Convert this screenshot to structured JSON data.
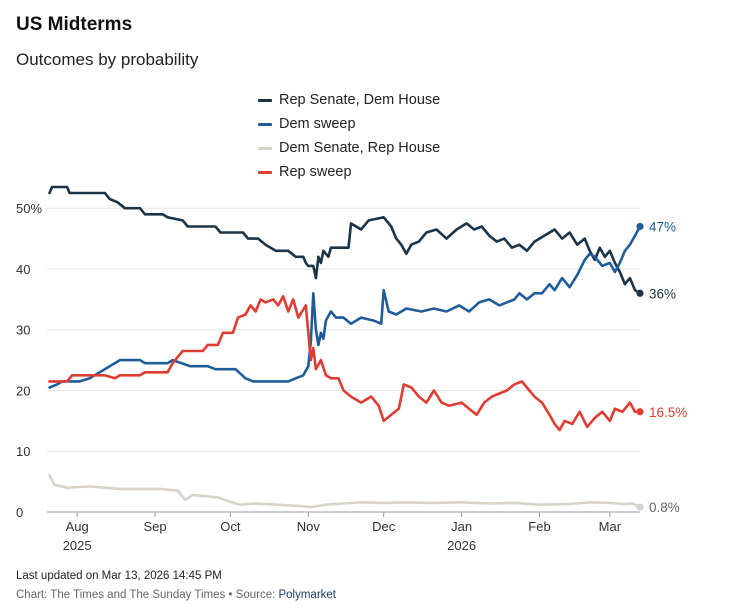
{
  "header": {
    "title": "US Midterms",
    "subtitle": "Outcomes by probability"
  },
  "legend": [
    {
      "label": "Rep Senate, Dem House",
      "color": "#1b3447"
    },
    {
      "label": "Dem sweep",
      "color": "#1f5c99"
    },
    {
      "label": "Dem Senate, Rep House",
      "color": "#d8d3c8"
    },
    {
      "label": "Rep sweep",
      "color": "#e03c31"
    }
  ],
  "chart_data": {
    "type": "line",
    "title": "US Midterms",
    "subtitle": "Outcomes by probability",
    "xlabel": "",
    "ylabel": "",
    "y_unit": "%",
    "ylim": [
      0,
      53
    ],
    "y_ticks": [
      0,
      10,
      20,
      30,
      40,
      50
    ],
    "y_tick_labels": [
      "0",
      "10",
      "20",
      "30",
      "40",
      "50%"
    ],
    "x_range": [
      "2025-07-20",
      "2026-03-13"
    ],
    "x_ticks": [
      {
        "date": "2025-08-01",
        "label": "Aug",
        "year": "2025"
      },
      {
        "date": "2025-09-01",
        "label": "Sep",
        "year": ""
      },
      {
        "date": "2025-10-01",
        "label": "Oct",
        "year": ""
      },
      {
        "date": "2025-11-01",
        "label": "Nov",
        "year": ""
      },
      {
        "date": "2025-12-01",
        "label": "Dec",
        "year": ""
      },
      {
        "date": "2026-01-01",
        "label": "Jan",
        "year": "2026"
      },
      {
        "date": "2026-02-01",
        "label": "Feb",
        "year": ""
      },
      {
        "date": "2026-03-01",
        "label": "Mar",
        "year": ""
      }
    ],
    "grid": true,
    "series": [
      {
        "name": "Rep Senate, Dem House",
        "color": "#1b3447",
        "end_label": "36%",
        "points": [
          [
            "2025-07-21",
            52.5
          ],
          [
            "2025-07-22",
            53.5
          ],
          [
            "2025-07-28",
            53.5
          ],
          [
            "2025-07-29",
            52.5
          ],
          [
            "2025-08-12",
            52.5
          ],
          [
            "2025-08-14",
            51.5
          ],
          [
            "2025-08-17",
            51
          ],
          [
            "2025-08-20",
            50
          ],
          [
            "2025-08-26",
            50
          ],
          [
            "2025-08-28",
            49
          ],
          [
            "2025-09-04",
            49
          ],
          [
            "2025-09-06",
            48.5
          ],
          [
            "2025-09-12",
            48
          ],
          [
            "2025-09-14",
            47
          ],
          [
            "2025-09-25",
            47
          ],
          [
            "2025-09-27",
            46
          ],
          [
            "2025-10-06",
            46
          ],
          [
            "2025-10-08",
            45
          ],
          [
            "2025-10-12",
            45
          ],
          [
            "2025-10-15",
            44
          ],
          [
            "2025-10-19",
            43
          ],
          [
            "2025-10-24",
            43
          ],
          [
            "2025-10-27",
            42
          ],
          [
            "2025-10-30",
            42
          ],
          [
            "2025-10-31",
            41
          ],
          [
            "2025-11-01",
            40.5
          ],
          [
            "2025-11-03",
            40.5
          ],
          [
            "2025-11-04",
            38.5
          ],
          [
            "2025-11-05",
            42
          ],
          [
            "2025-11-06",
            41
          ],
          [
            "2025-11-07",
            43
          ],
          [
            "2025-11-09",
            42
          ],
          [
            "2025-11-10",
            43.5
          ],
          [
            "2025-11-17",
            43.5
          ],
          [
            "2025-11-18",
            47.5
          ],
          [
            "2025-11-22",
            46.5
          ],
          [
            "2025-11-25",
            48
          ],
          [
            "2025-12-01",
            48.5
          ],
          [
            "2025-12-04",
            47
          ],
          [
            "2025-12-06",
            45
          ],
          [
            "2025-12-08",
            44
          ],
          [
            "2025-12-10",
            42.5
          ],
          [
            "2025-12-12",
            44
          ],
          [
            "2025-12-15",
            44.5
          ],
          [
            "2025-12-18",
            46
          ],
          [
            "2025-12-22",
            46.5
          ],
          [
            "2025-12-26",
            45
          ],
          [
            "2025-12-30",
            46.5
          ],
          [
            "2026-01-03",
            47.5
          ],
          [
            "2026-01-06",
            46.5
          ],
          [
            "2026-01-09",
            47
          ],
          [
            "2026-01-12",
            45.5
          ],
          [
            "2026-01-15",
            44.5
          ],
          [
            "2026-01-18",
            45
          ],
          [
            "2026-01-21",
            43.5
          ],
          [
            "2026-01-24",
            44
          ],
          [
            "2026-01-27",
            43
          ],
          [
            "2026-01-30",
            44.5
          ],
          [
            "2026-02-03",
            45.5
          ],
          [
            "2026-02-07",
            46.5
          ],
          [
            "2026-02-10",
            45
          ],
          [
            "2026-02-13",
            46
          ],
          [
            "2026-02-16",
            44
          ],
          [
            "2026-02-19",
            45
          ],
          [
            "2026-02-21",
            43
          ],
          [
            "2026-02-23",
            41.5
          ],
          [
            "2026-02-25",
            43.5
          ],
          [
            "2026-02-27",
            42
          ],
          [
            "2026-03-01",
            43
          ],
          [
            "2026-03-03",
            41
          ],
          [
            "2026-03-05",
            39.5
          ],
          [
            "2026-03-07",
            37.5
          ],
          [
            "2026-03-09",
            38.5
          ],
          [
            "2026-03-11",
            36.5
          ],
          [
            "2026-03-13",
            36
          ]
        ]
      },
      {
        "name": "Dem sweep",
        "color": "#1f5c99",
        "end_label": "47%",
        "points": [
          [
            "2025-07-21",
            20.5
          ],
          [
            "2025-07-24",
            21
          ],
          [
            "2025-07-26",
            21.5
          ],
          [
            "2025-08-02",
            21.5
          ],
          [
            "2025-08-06",
            22
          ],
          [
            "2025-08-10",
            23
          ],
          [
            "2025-08-14",
            24
          ],
          [
            "2025-08-18",
            25
          ],
          [
            "2025-08-26",
            25
          ],
          [
            "2025-08-28",
            24.5
          ],
          [
            "2025-09-06",
            24.5
          ],
          [
            "2025-09-08",
            25
          ],
          [
            "2025-09-15",
            24
          ],
          [
            "2025-09-22",
            24
          ],
          [
            "2025-09-25",
            23.5
          ],
          [
            "2025-10-03",
            23.5
          ],
          [
            "2025-10-07",
            22
          ],
          [
            "2025-10-10",
            21.5
          ],
          [
            "2025-10-24",
            21.5
          ],
          [
            "2025-10-27",
            22
          ],
          [
            "2025-10-30",
            22.5
          ],
          [
            "2025-11-01",
            24
          ],
          [
            "2025-11-02",
            28
          ],
          [
            "2025-11-03",
            36
          ],
          [
            "2025-11-04",
            30
          ],
          [
            "2025-11-05",
            27.5
          ],
          [
            "2025-11-06",
            29.5
          ],
          [
            "2025-11-07",
            28.5
          ],
          [
            "2025-11-08",
            31.5
          ],
          [
            "2025-11-10",
            33
          ],
          [
            "2025-11-12",
            32
          ],
          [
            "2025-11-15",
            32
          ],
          [
            "2025-11-18",
            31
          ],
          [
            "2025-11-22",
            32
          ],
          [
            "2025-11-27",
            31.5
          ],
          [
            "2025-11-30",
            31
          ],
          [
            "2025-12-01",
            36.5
          ],
          [
            "2025-12-03",
            33
          ],
          [
            "2025-12-06",
            32.5
          ],
          [
            "2025-12-10",
            33.5
          ],
          [
            "2025-12-16",
            33
          ],
          [
            "2025-12-21",
            33.5
          ],
          [
            "2025-12-26",
            33
          ],
          [
            "2025-12-31",
            34
          ],
          [
            "2026-01-04",
            33
          ],
          [
            "2026-01-08",
            34.5
          ],
          [
            "2026-01-12",
            35
          ],
          [
            "2026-01-16",
            34
          ],
          [
            "2026-01-19",
            34.5
          ],
          [
            "2026-01-22",
            35
          ],
          [
            "2026-01-24",
            36
          ],
          [
            "2026-01-27",
            35
          ],
          [
            "2026-01-30",
            36
          ],
          [
            "2026-02-02",
            36
          ],
          [
            "2026-02-05",
            37.5
          ],
          [
            "2026-02-07",
            36.5
          ],
          [
            "2026-02-10",
            38.5
          ],
          [
            "2026-02-13",
            37
          ],
          [
            "2026-02-16",
            39
          ],
          [
            "2026-02-19",
            41.5
          ],
          [
            "2026-02-21",
            42.5
          ],
          [
            "2026-02-23",
            42
          ],
          [
            "2026-02-26",
            40.5
          ],
          [
            "2026-03-01",
            41
          ],
          [
            "2026-03-03",
            39.5
          ],
          [
            "2026-03-05",
            41
          ],
          [
            "2026-03-07",
            43
          ],
          [
            "2026-03-09",
            44
          ],
          [
            "2026-03-11",
            45.5
          ],
          [
            "2026-03-13",
            47
          ]
        ]
      },
      {
        "name": "Dem Senate, Rep House",
        "color": "#d8d3c8",
        "end_label": "0.8%",
        "points": [
          [
            "2025-07-21",
            6
          ],
          [
            "2025-07-23",
            4.5
          ],
          [
            "2025-07-28",
            4
          ],
          [
            "2025-08-06",
            4.2
          ],
          [
            "2025-08-12",
            4
          ],
          [
            "2025-08-18",
            3.8
          ],
          [
            "2025-08-28",
            3.8
          ],
          [
            "2025-09-03",
            3.8
          ],
          [
            "2025-09-10",
            3.5
          ],
          [
            "2025-09-13",
            2
          ],
          [
            "2025-09-16",
            2.8
          ],
          [
            "2025-09-21",
            2.6
          ],
          [
            "2025-09-26",
            2.4
          ],
          [
            "2025-09-30",
            1.8
          ],
          [
            "2025-10-05",
            1.2
          ],
          [
            "2025-10-10",
            1.4
          ],
          [
            "2025-10-20",
            1.2
          ],
          [
            "2025-10-28",
            1.0
          ],
          [
            "2025-11-02",
            0.8
          ],
          [
            "2025-11-08",
            1.2
          ],
          [
            "2025-11-15",
            1.4
          ],
          [
            "2025-11-22",
            1.6
          ],
          [
            "2025-12-01",
            1.5
          ],
          [
            "2025-12-10",
            1.6
          ],
          [
            "2025-12-20",
            1.5
          ],
          [
            "2026-01-01",
            1.6
          ],
          [
            "2026-01-12",
            1.4
          ],
          [
            "2026-01-22",
            1.5
          ],
          [
            "2026-02-01",
            1.2
          ],
          [
            "2026-02-12",
            1.3
          ],
          [
            "2026-02-22",
            1.6
          ],
          [
            "2026-03-01",
            1.5
          ],
          [
            "2026-03-07",
            1.3
          ],
          [
            "2026-03-10",
            1.4
          ],
          [
            "2026-03-13",
            0.8
          ]
        ]
      },
      {
        "name": "Rep sweep",
        "color": "#e03c31",
        "end_label": "16.5%",
        "points": [
          [
            "2025-07-21",
            21.5
          ],
          [
            "2025-07-28",
            21.5
          ],
          [
            "2025-07-30",
            22.5
          ],
          [
            "2025-08-12",
            22.5
          ],
          [
            "2025-08-16",
            22
          ],
          [
            "2025-08-18",
            22.5
          ],
          [
            "2025-08-26",
            22.5
          ],
          [
            "2025-08-28",
            23
          ],
          [
            "2025-09-06",
            23
          ],
          [
            "2025-09-08",
            24.5
          ],
          [
            "2025-09-12",
            26.5
          ],
          [
            "2025-09-20",
            26.5
          ],
          [
            "2025-09-22",
            27.5
          ],
          [
            "2025-09-26",
            27.5
          ],
          [
            "2025-09-28",
            29.5
          ],
          [
            "2025-10-02",
            29.5
          ],
          [
            "2025-10-04",
            32
          ],
          [
            "2025-10-07",
            32.5
          ],
          [
            "2025-10-09",
            34
          ],
          [
            "2025-10-11",
            33
          ],
          [
            "2025-10-13",
            35
          ],
          [
            "2025-10-15",
            34.5
          ],
          [
            "2025-10-18",
            35
          ],
          [
            "2025-10-20",
            34
          ],
          [
            "2025-10-22",
            35.5
          ],
          [
            "2025-10-24",
            33
          ],
          [
            "2025-10-26",
            35
          ],
          [
            "2025-10-28",
            32
          ],
          [
            "2025-10-31",
            34
          ],
          [
            "2025-11-02",
            25
          ],
          [
            "2025-11-03",
            27
          ],
          [
            "2025-11-04",
            23.5
          ],
          [
            "2025-11-06",
            25
          ],
          [
            "2025-11-08",
            22.5
          ],
          [
            "2025-11-10",
            22
          ],
          [
            "2025-11-13",
            22
          ],
          [
            "2025-11-15",
            20
          ],
          [
            "2025-11-18",
            19
          ],
          [
            "2025-11-22",
            18
          ],
          [
            "2025-11-26",
            19
          ],
          [
            "2025-11-29",
            17.5
          ],
          [
            "2025-12-01",
            15
          ],
          [
            "2025-12-04",
            16
          ],
          [
            "2025-12-07",
            17
          ],
          [
            "2025-12-09",
            21
          ],
          [
            "2025-12-12",
            20.5
          ],
          [
            "2025-12-15",
            19
          ],
          [
            "2025-12-18",
            18
          ],
          [
            "2025-12-21",
            20
          ],
          [
            "2025-12-24",
            18
          ],
          [
            "2025-12-27",
            17.5
          ],
          [
            "2026-01-01",
            18
          ],
          [
            "2026-01-04",
            17
          ],
          [
            "2026-01-07",
            16
          ],
          [
            "2026-01-10",
            18
          ],
          [
            "2026-01-13",
            19
          ],
          [
            "2026-01-16",
            19.5
          ],
          [
            "2026-01-19",
            20
          ],
          [
            "2026-01-22",
            21
          ],
          [
            "2026-01-25",
            21.5
          ],
          [
            "2026-01-27",
            20.5
          ],
          [
            "2026-01-30",
            19
          ],
          [
            "2026-02-02",
            18
          ],
          [
            "2026-02-05",
            16
          ],
          [
            "2026-02-07",
            14.5
          ],
          [
            "2026-02-09",
            13.5
          ],
          [
            "2026-02-11",
            15
          ],
          [
            "2026-02-14",
            14.5
          ],
          [
            "2026-02-17",
            16.5
          ],
          [
            "2026-02-20",
            14
          ],
          [
            "2026-02-23",
            15.5
          ],
          [
            "2026-02-26",
            16.5
          ],
          [
            "2026-03-01",
            15
          ],
          [
            "2026-03-03",
            17
          ],
          [
            "2026-03-06",
            16.5
          ],
          [
            "2026-03-09",
            18
          ],
          [
            "2026-03-11",
            16.5
          ],
          [
            "2026-03-13",
            16.5
          ]
        ]
      }
    ]
  },
  "footer": {
    "updated": "Last updated on Mar 13, 2026 14:45 PM",
    "source_prefix": "Chart: The Times and The Sunday Times • Source: ",
    "source_name": "Polymarket"
  }
}
